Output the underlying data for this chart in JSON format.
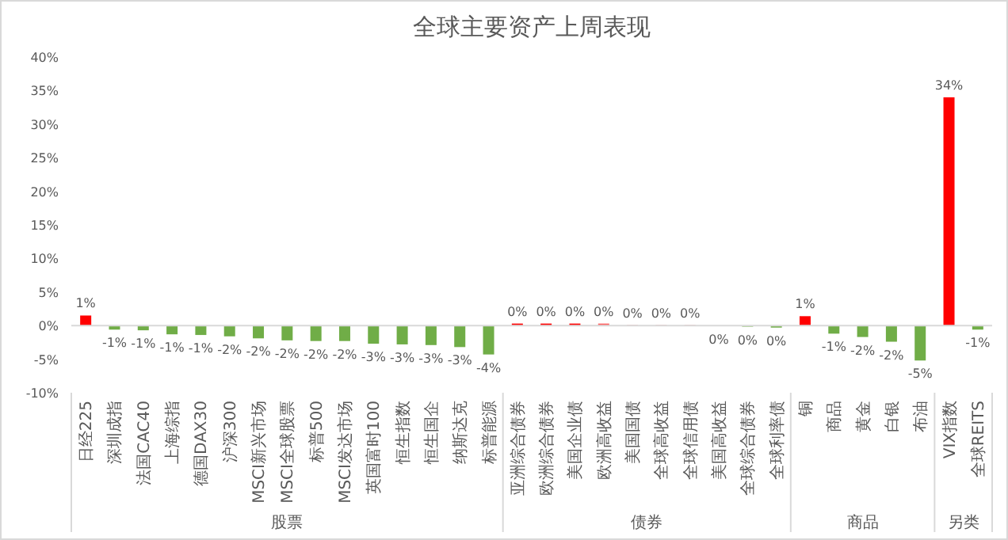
{
  "chart_data": {
    "type": "bar",
    "title": "全球主要资产上周表现",
    "categories": [
      "日经225",
      "深圳成指",
      "法国CAC40",
      "上海综指",
      "德国DAX30",
      "沪深300",
      "MSCI新兴市场",
      "MSCI全球股票",
      "标普500",
      "MSCI发达市场",
      "英国富时100",
      "恒生指数",
      "恒生国企",
      "纳斯达克",
      "标普能源",
      "亚洲综合债券",
      "欧洲综合债券",
      "美国企业债",
      "欧洲高收益",
      "美国国债",
      "全球高收益",
      "全球信用债",
      "美国高收益",
      "全球综合债券",
      "全球利率债",
      "铜",
      "商品",
      "黄金",
      "白银",
      "布油",
      "VIX指数",
      "全球REITS"
    ],
    "values": [
      1.5,
      -0.6,
      -0.7,
      -1.3,
      -1.4,
      -1.6,
      -1.9,
      -2.2,
      -2.3,
      -2.3,
      -2.7,
      -2.8,
      -2.9,
      -3.2,
      -4.3,
      0.3,
      0.3,
      0.3,
      0.3,
      0.05,
      0.05,
      0.05,
      -0.05,
      -0.2,
      -0.3,
      1.4,
      -1.2,
      -1.7,
      -2.4,
      -5.2,
      34,
      -0.6
    ],
    "colors": [
      "#ff0000",
      "#70ad47",
      "#70ad47",
      "#70ad47",
      "#70ad47",
      "#70ad47",
      "#70ad47",
      "#70ad47",
      "#70ad47",
      "#70ad47",
      "#70ad47",
      "#70ad47",
      "#70ad47",
      "#70ad47",
      "#70ad47",
      "#ff0000",
      "#ff0000",
      "#ff0000",
      "#ff6060",
      "#ff0000",
      "#ff0000",
      "#ff0000",
      "#70ad47",
      "#a9d18e",
      "#70ad47",
      "#ff0000",
      "#70ad47",
      "#70ad47",
      "#70ad47",
      "#70ad47",
      "#ff0000",
      "#70ad47"
    ],
    "value_labels": [
      "1%",
      "-1%",
      "-1%",
      "-1%",
      "-1%",
      "-2%",
      "-2%",
      "-2%",
      "-2%",
      "-2%",
      "-3%",
      "-3%",
      "-3%",
      "-3%",
      "-4%",
      "0%",
      "0%",
      "0%",
      "0%",
      "0%",
      "0%",
      "0%",
      "0%",
      "0%",
      "0%",
      "1%",
      "-1%",
      "-2%",
      "-2%",
      "-5%",
      "34%",
      "-1%"
    ],
    "ylim": [
      -10,
      40
    ],
    "yticks": [
      {
        "value": -10,
        "label": "-10%"
      },
      {
        "value": -5,
        "label": "-5%"
      },
      {
        "value": 0,
        "label": "0%"
      },
      {
        "value": 5,
        "label": "5%"
      },
      {
        "value": 10,
        "label": "10%"
      },
      {
        "value": 15,
        "label": "15%"
      },
      {
        "value": 20,
        "label": "20%"
      },
      {
        "value": 25,
        "label": "25%"
      },
      {
        "value": 30,
        "label": "30%"
      },
      {
        "value": 35,
        "label": "35%"
      },
      {
        "value": 40,
        "label": "40%"
      }
    ],
    "annotations": [
      "股票",
      "债券",
      "商品",
      "另类"
    ]
  }
}
